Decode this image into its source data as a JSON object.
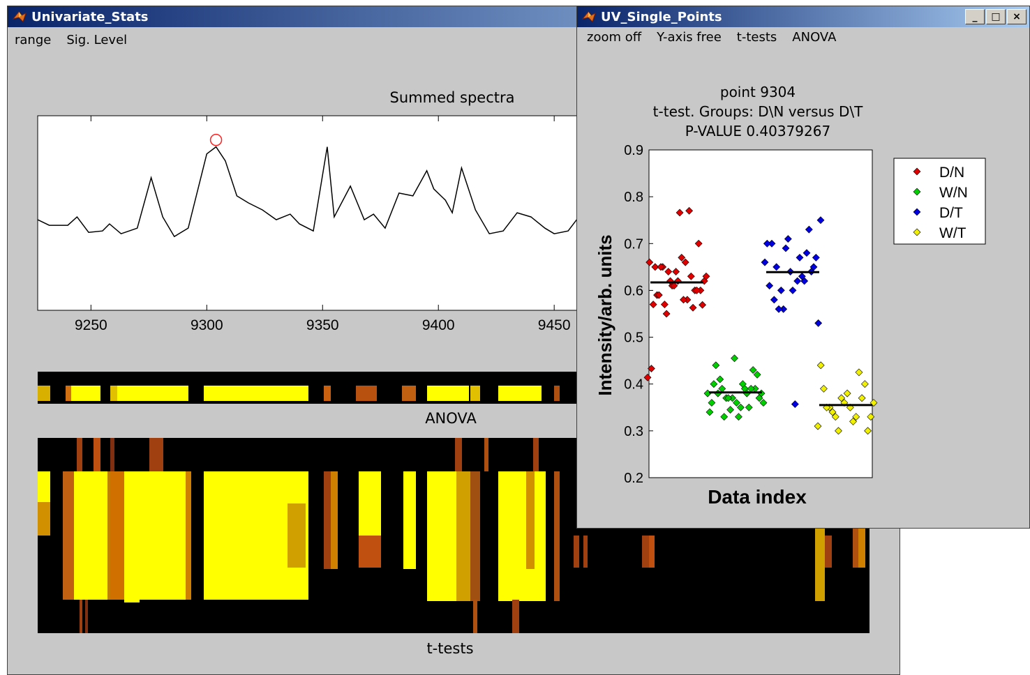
{
  "window_main": {
    "title": "Univariate_Stats",
    "menu": [
      "range",
      "Sig. Level"
    ]
  },
  "window_points": {
    "title": "UV_Single_Points",
    "menu": [
      "zoom off",
      "Y-axis free",
      "t-tests",
      "ANOVA"
    ],
    "controls": {
      "minimize": "_",
      "maximize": "□",
      "close": "×"
    }
  },
  "spectrum": {
    "title": "Summed spectra",
    "x_ticks": [
      "9250",
      "9300",
      "9350",
      "9400",
      "9450"
    ],
    "selected_point_x": 9304
  },
  "anova": {
    "label": "ANOVA"
  },
  "ttests": {
    "label": "t-tests"
  },
  "chart_data": [
    {
      "type": "line",
      "title": "Summed spectra",
      "xlabel": "",
      "ylabel": "",
      "xlim": [
        9227,
        9462
      ],
      "x_ticks": [
        9250,
        9300,
        9350,
        9400,
        9450
      ],
      "x": [
        9227,
        9232,
        9240,
        9244,
        9249,
        9255,
        9258,
        9263,
        9270,
        9276,
        9281,
        9286,
        9292,
        9300,
        9304,
        9308,
        9313,
        9318,
        9324,
        9330,
        9336,
        9340,
        9346,
        9352,
        9355,
        9362,
        9368,
        9372,
        9377,
        9383,
        9389,
        9395,
        9398,
        9403,
        9406,
        9410,
        9416,
        9422,
        9428,
        9434,
        9440,
        9446,
        9450,
        9456,
        9462
      ],
      "y": [
        0.48,
        0.44,
        0.44,
        0.5,
        0.39,
        0.4,
        0.45,
        0.38,
        0.42,
        0.78,
        0.5,
        0.36,
        0.42,
        0.95,
        1.0,
        0.9,
        0.65,
        0.6,
        0.55,
        0.48,
        0.52,
        0.45,
        0.4,
        1.0,
        0.5,
        0.72,
        0.48,
        0.52,
        0.42,
        0.67,
        0.65,
        0.83,
        0.7,
        0.62,
        0.53,
        0.85,
        0.55,
        0.38,
        0.4,
        0.53,
        0.5,
        0.42,
        0.38,
        0.4,
        0.53
      ],
      "selected_point": {
        "x": 9304,
        "y": 1.0
      }
    },
    {
      "type": "scatter",
      "title": "point 9304",
      "subtitle": "t-test. Groups: D\\N versus D\\T",
      "pvalue_label": "P-VALUE 0.40379267",
      "xlabel": "Data index",
      "ylabel": "Intensity/arb. units",
      "ylim": [
        0.2,
        0.9
      ],
      "y_ticks": [
        "0.2",
        "0.3",
        "0.4",
        "0.5",
        "0.6",
        "0.7",
        "0.8",
        "0.9"
      ],
      "legend_position": "right",
      "series": [
        {
          "name": "D/N",
          "color": "#e00000",
          "mean": 0.617,
          "values": [
            0.414,
            0.59,
            0.55,
            0.64,
            0.66,
            0.6,
            0.62,
            0.57,
            0.65,
            0.61,
            0.67,
            0.63,
            0.6,
            0.66,
            0.59,
            0.64,
            0.62,
            0.58,
            0.6,
            0.63,
            0.65,
            0.57,
            0.61,
            0.58,
            0.563,
            0.569,
            0.433,
            0.65,
            0.62,
            0.766,
            0.77,
            0.7
          ]
        },
        {
          "name": "W/N",
          "color": "#00d000",
          "mean": 0.382,
          "values": [
            0.38,
            0.37,
            0.39,
            0.36,
            0.33,
            0.4,
            0.38,
            0.39,
            0.35,
            0.37,
            0.41,
            0.33,
            0.42,
            0.38,
            0.36,
            0.39,
            0.44,
            0.455,
            0.43,
            0.4,
            0.37,
            0.39,
            0.36,
            0.345,
            0.35,
            0.34,
            0.37,
            0.38
          ]
        },
        {
          "name": "D/T",
          "color": "#0000e0",
          "mean": 0.639,
          "values": [
            0.66,
            0.6,
            0.75,
            0.64,
            0.53,
            0.71,
            0.67,
            0.69,
            0.65,
            0.56,
            0.64,
            0.6,
            0.73,
            0.56,
            0.68,
            0.65,
            0.62,
            0.58,
            0.63,
            0.7,
            0.67,
            0.61,
            0.62,
            0.7,
            0.357
          ]
        },
        {
          "name": "W/T",
          "color": "#f0f000",
          "mean": 0.355,
          "values": [
            0.31,
            0.3,
            0.425,
            0.35,
            0.37,
            0.34,
            0.39,
            0.36,
            0.4,
            0.33,
            0.38,
            0.3,
            0.35,
            0.44,
            0.33,
            0.37,
            0.32,
            0.36,
            0.33,
            0.35
          ]
        }
      ]
    }
  ]
}
